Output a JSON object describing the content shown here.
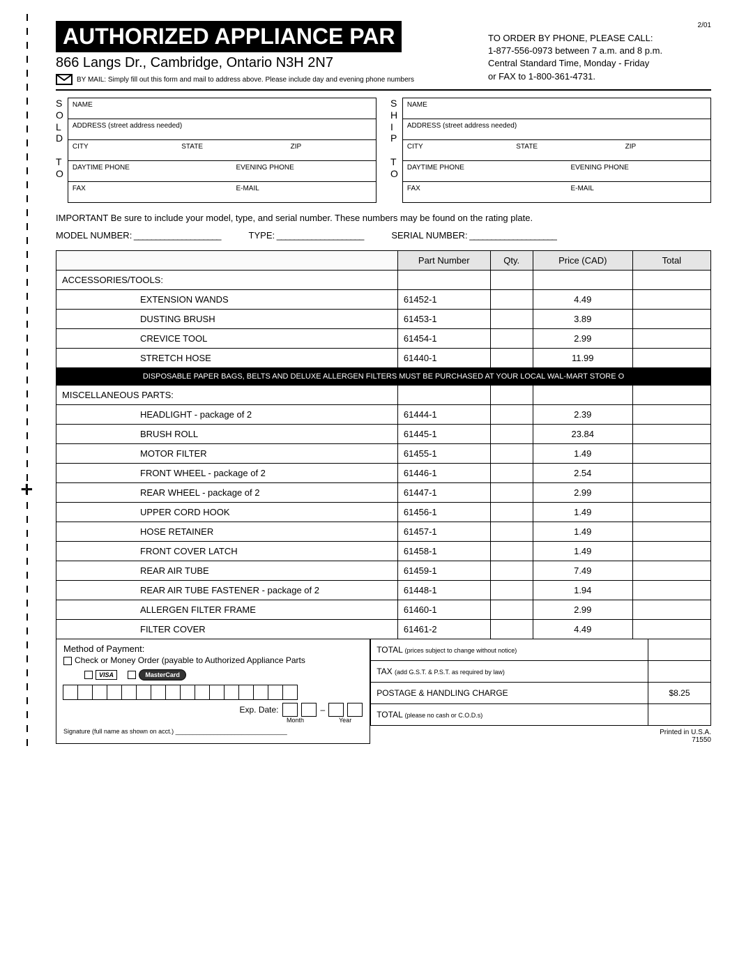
{
  "corner_date": "2/01",
  "header": {
    "title": "AUTHORIZED APPLIANCE PAR",
    "address": "866 Langs Dr., Cambridge, Ontario N3H 2N7",
    "mail_instr": "BY MAIL: Simply fill out this form and mail to address above. Please include day and evening phone numbers",
    "phone1": "TO ORDER BY PHONE, PLEASE CALL:",
    "phone2": "1-877-556-0973 between 7 a.m. and 8 p.m.",
    "phone3": "Central Standard Time, Monday - Friday",
    "phone4": "or FAX to 1-800-361-4731."
  },
  "soldto_label": "SOLD TO",
  "shipto_label": "SHIP TO",
  "addr_labels": {
    "name": "NAME",
    "address": "ADDRESS (street address needed)",
    "city": "CITY",
    "state": "STATE",
    "zip": "ZIP",
    "dayphone": "DAYTIME PHONE",
    "evephone": "EVENING PHONE",
    "fax": "FAX",
    "email": "E-MAIL"
  },
  "important": "IMPORTANT Be sure to include your model, type, and serial number. These numbers may be found on the rating plate.",
  "model": "MODEL NUMBER:",
  "type": "TYPE:",
  "serial": "SERIAL NUMBER:",
  "cols": {
    "part": "Part Number",
    "qty": "Qty.",
    "price": "Price (CAD)",
    "total": "Total"
  },
  "sec1": "ACCESSORIES/TOOLS:",
  "sec2": "MISCELLANEOUS PARTS:",
  "accessories": [
    {
      "desc": "EXTENSION WANDS",
      "part": "61452-1",
      "price": "4.49"
    },
    {
      "desc": "DUSTING BRUSH",
      "part": "61453-1",
      "price": "3.89"
    },
    {
      "desc": "CREVICE TOOL",
      "part": "61454-1",
      "price": "2.99"
    },
    {
      "desc": "STRETCH HOSE",
      "part": "61440-1",
      "price": "11.99"
    }
  ],
  "black_notice": "DISPOSABLE PAPER BAGS, BELTS AND DELUXE ALLERGEN FILTERS MUST BE PURCHASED AT YOUR LOCAL WAL-MART STORE O",
  "misc": [
    {
      "desc": "HEADLIGHT - package of 2",
      "part": "61444-1",
      "price": "2.39"
    },
    {
      "desc": "BRUSH ROLL",
      "part": "61445-1",
      "price": "23.84"
    },
    {
      "desc": "MOTOR FILTER",
      "part": "61455-1",
      "price": "1.49"
    },
    {
      "desc": "FRONT WHEEL - package of 2",
      "part": "61446-1",
      "price": "2.54"
    },
    {
      "desc": "REAR WHEEL - package of 2",
      "part": "61447-1",
      "price": "2.99"
    },
    {
      "desc": "UPPER CORD HOOK",
      "part": "61456-1",
      "price": "1.49"
    },
    {
      "desc": "HOSE RETAINER",
      "part": "61457-1",
      "price": "1.49"
    },
    {
      "desc": "FRONT COVER LATCH",
      "part": "61458-1",
      "price": "1.49"
    },
    {
      "desc": "REAR AIR TUBE",
      "part": "61459-1",
      "price": "7.49"
    },
    {
      "desc": "REAR AIR TUBE FASTENER - package of 2",
      "part": "61448-1",
      "price": "1.94"
    },
    {
      "desc": "ALLERGEN FILTER FRAME",
      "part": "61460-1",
      "price": "2.99"
    },
    {
      "desc": "FILTER COVER",
      "part": "61461-2",
      "price": "4.49"
    }
  ],
  "payment": {
    "title": "Method of Payment:",
    "check": "Check or Money Order (payable to Authorized Appliance Parts",
    "visa": "VISA",
    "mc": "MasterCard",
    "exp": "Exp. Date:",
    "month": "Month",
    "year": "Year",
    "sig": "Signature (full name as shown on acct.) ________________________________"
  },
  "totals": {
    "r1a": "TOTAL",
    "r1b": "(prices subject to change without notice)",
    "r2a": "TAX",
    "r2b": "(add G.S.T. & P.S.T. as required by law)",
    "r3": "POSTAGE & HANDLING CHARGE",
    "r3v": "$8.25",
    "r4a": "TOTAL",
    "r4b": "(please no cash or C.O.D.s)"
  },
  "footer1": "Printed in U.S.A.",
  "footer2": "71550"
}
